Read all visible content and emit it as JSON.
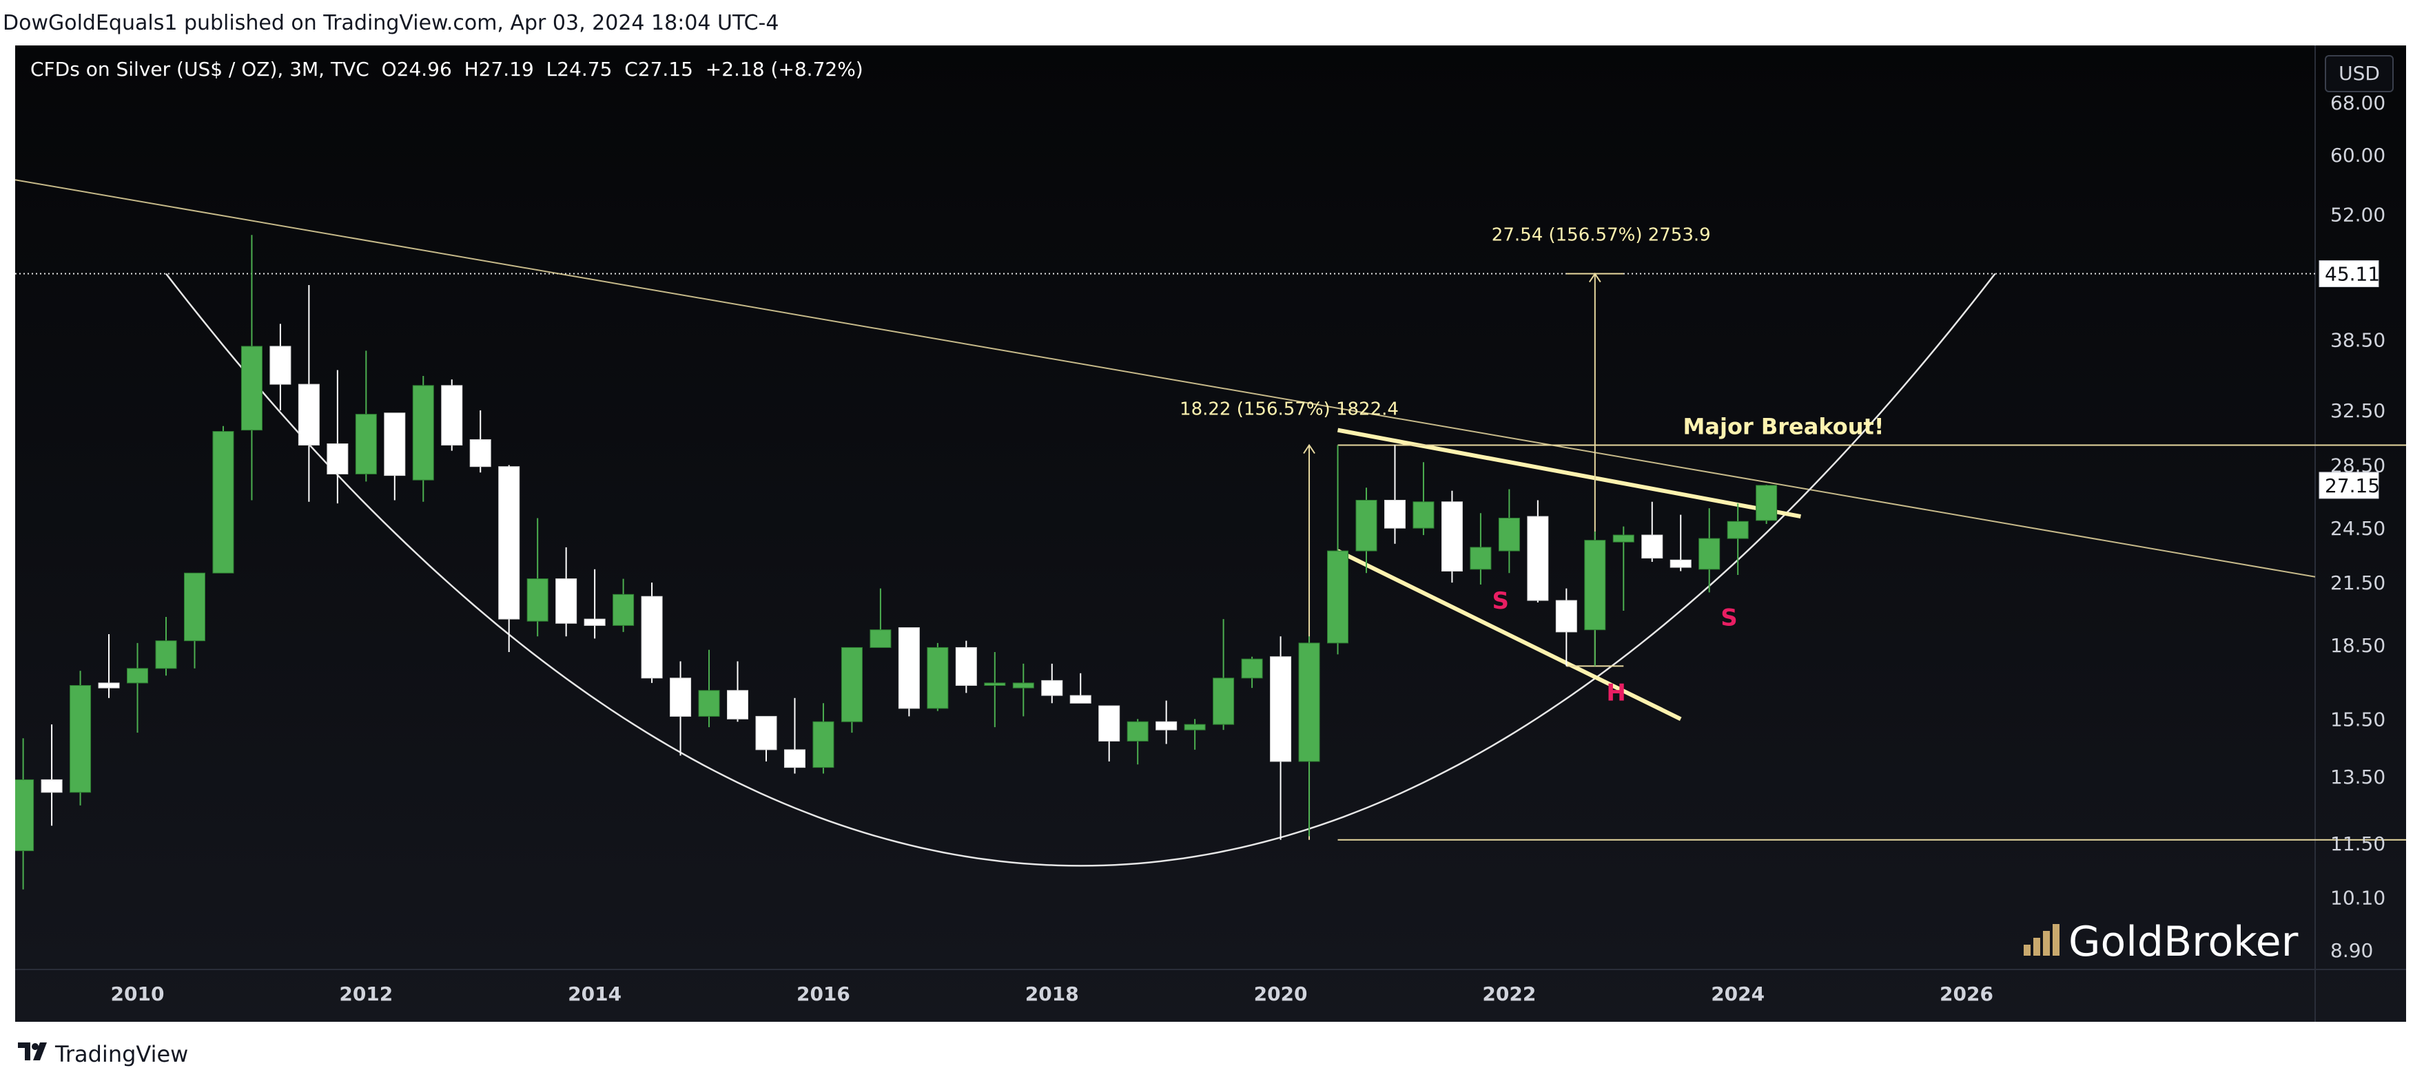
{
  "header": {
    "publisher": "DowGoldEquals1 published on TradingView.com, Apr 03, 2024 18:04 UTC-4"
  },
  "footer": {
    "brand": "TradingView"
  },
  "toolbar": {
    "currency": "USD"
  },
  "legend": {
    "symbol": "CFDs on Silver (US$ / OZ), 3M, TVC",
    "open": "O24.96",
    "high": "H27.19",
    "low": "L24.75",
    "close": "C27.15",
    "change": "+2.18 (+8.72%)"
  },
  "watermark": "GoldBroker",
  "colors": {
    "up": "#4caf50",
    "down": "#ffffff",
    "background": "#0b0d12",
    "annotation": "#fff3b0",
    "pattern_label": "#e91e63"
  },
  "chart_data": {
    "type": "candlestick",
    "title": "CFDs on Silver (US$ / OZ), 3M, TVC",
    "y_scale": "log",
    "ylim": [
      8.5,
      78
    ],
    "y_ticks": [
      "68.00",
      "60.00",
      "52.00",
      "45.11",
      "38.50",
      "32.50",
      "28.50",
      "27.15",
      "24.50",
      "21.50",
      "18.50",
      "15.50",
      "13.50",
      "11.50",
      "10.10",
      "8.90"
    ],
    "x_ticks": [
      "2010",
      "2012",
      "2014",
      "2016",
      "2018",
      "2020",
      "2022",
      "2024",
      "2026"
    ],
    "xlim": [
      2008.93,
      2029.05
    ],
    "candles": [
      {
        "t": 2009.0,
        "o": 11.3,
        "h": 14.8,
        "l": 10.3,
        "c": 13.4
      },
      {
        "t": 2009.25,
        "o": 13.4,
        "h": 15.3,
        "l": 12.0,
        "c": 13.0
      },
      {
        "t": 2009.5,
        "o": 13.0,
        "h": 17.4,
        "l": 12.6,
        "c": 16.8
      },
      {
        "t": 2009.75,
        "o": 16.9,
        "h": 19.0,
        "l": 16.3,
        "c": 16.7
      },
      {
        "t": 2010.0,
        "o": 16.9,
        "h": 18.6,
        "l": 15.0,
        "c": 17.5
      },
      {
        "t": 2010.25,
        "o": 17.5,
        "h": 19.8,
        "l": 17.2,
        "c": 18.7
      },
      {
        "t": 2010.5,
        "o": 18.7,
        "h": 22.0,
        "l": 17.5,
        "c": 22.0
      },
      {
        "t": 2010.75,
        "o": 22.0,
        "h": 31.3,
        "l": 22.0,
        "c": 30.9
      },
      {
        "t": 2011.0,
        "o": 31.0,
        "h": 49.5,
        "l": 26.2,
        "c": 37.9
      },
      {
        "t": 2011.25,
        "o": 37.9,
        "h": 40.0,
        "l": 32.5,
        "c": 34.6
      },
      {
        "t": 2011.5,
        "o": 34.6,
        "h": 43.9,
        "l": 26.1,
        "c": 29.9
      },
      {
        "t": 2011.75,
        "o": 30.0,
        "h": 35.8,
        "l": 26.0,
        "c": 27.9
      },
      {
        "t": 2012.0,
        "o": 27.9,
        "h": 37.5,
        "l": 27.4,
        "c": 32.2
      },
      {
        "t": 2012.25,
        "o": 32.3,
        "h": 32.3,
        "l": 26.2,
        "c": 27.8
      },
      {
        "t": 2012.5,
        "o": 27.5,
        "h": 35.3,
        "l": 26.1,
        "c": 34.5
      },
      {
        "t": 2012.75,
        "o": 34.5,
        "h": 35.0,
        "l": 29.5,
        "c": 29.9
      },
      {
        "t": 2013.0,
        "o": 30.3,
        "h": 32.5,
        "l": 28.0,
        "c": 28.4
      },
      {
        "t": 2013.25,
        "o": 28.4,
        "h": 28.5,
        "l": 18.2,
        "c": 19.7
      },
      {
        "t": 2013.5,
        "o": 19.6,
        "h": 25.1,
        "l": 18.9,
        "c": 21.7
      },
      {
        "t": 2013.75,
        "o": 21.7,
        "h": 23.4,
        "l": 18.9,
        "c": 19.5
      },
      {
        "t": 2014.0,
        "o": 19.7,
        "h": 22.2,
        "l": 18.8,
        "c": 19.4
      },
      {
        "t": 2014.25,
        "o": 19.4,
        "h": 21.7,
        "l": 19.1,
        "c": 20.9
      },
      {
        "t": 2014.5,
        "o": 20.8,
        "h": 21.5,
        "l": 16.9,
        "c": 17.1
      },
      {
        "t": 2014.75,
        "o": 17.1,
        "h": 17.8,
        "l": 14.2,
        "c": 15.6
      },
      {
        "t": 2015.0,
        "o": 15.6,
        "h": 18.3,
        "l": 15.2,
        "c": 16.6
      },
      {
        "t": 2015.25,
        "o": 16.6,
        "h": 17.8,
        "l": 15.4,
        "c": 15.5
      },
      {
        "t": 2015.5,
        "o": 15.6,
        "h": 15.6,
        "l": 14.0,
        "c": 14.4
      },
      {
        "t": 2015.75,
        "o": 14.4,
        "h": 16.3,
        "l": 13.6,
        "c": 13.8
      },
      {
        "t": 2016.0,
        "o": 13.8,
        "h": 16.1,
        "l": 13.6,
        "c": 15.4
      },
      {
        "t": 2016.25,
        "o": 15.4,
        "h": 18.4,
        "l": 15.0,
        "c": 18.4
      },
      {
        "t": 2016.5,
        "o": 18.4,
        "h": 21.2,
        "l": 18.4,
        "c": 19.2
      },
      {
        "t": 2016.75,
        "o": 19.3,
        "h": 19.3,
        "l": 15.6,
        "c": 15.9
      },
      {
        "t": 2017.0,
        "o": 15.9,
        "h": 18.6,
        "l": 15.8,
        "c": 18.4
      },
      {
        "t": 2017.25,
        "o": 18.4,
        "h": 18.7,
        "l": 16.5,
        "c": 16.8
      },
      {
        "t": 2017.5,
        "o": 16.8,
        "h": 18.2,
        "l": 15.2,
        "c": 16.9
      },
      {
        "t": 2017.75,
        "o": 16.7,
        "h": 17.7,
        "l": 15.6,
        "c": 16.9
      },
      {
        "t": 2018.0,
        "o": 17.0,
        "h": 17.7,
        "l": 16.1,
        "c": 16.4
      },
      {
        "t": 2018.25,
        "o": 16.4,
        "h": 17.3,
        "l": 16.1,
        "c": 16.1
      },
      {
        "t": 2018.5,
        "o": 16.0,
        "h": 16.0,
        "l": 14.0,
        "c": 14.7
      },
      {
        "t": 2018.75,
        "o": 14.7,
        "h": 15.5,
        "l": 13.9,
        "c": 15.4
      },
      {
        "t": 2019.0,
        "o": 15.4,
        "h": 16.2,
        "l": 14.6,
        "c": 15.1
      },
      {
        "t": 2019.25,
        "o": 15.1,
        "h": 15.5,
        "l": 14.4,
        "c": 15.3
      },
      {
        "t": 2019.5,
        "o": 15.3,
        "h": 19.7,
        "l": 15.1,
        "c": 17.1
      },
      {
        "t": 2019.75,
        "o": 17.1,
        "h": 18.0,
        "l": 16.7,
        "c": 17.9
      },
      {
        "t": 2020.0,
        "o": 18.0,
        "h": 18.9,
        "l": 11.6,
        "c": 14.0
      },
      {
        "t": 2020.25,
        "o": 14.0,
        "h": 18.9,
        "l": 11.7,
        "c": 18.6
      },
      {
        "t": 2020.5,
        "o": 18.6,
        "h": 29.9,
        "l": 18.1,
        "c": 23.2
      },
      {
        "t": 2020.75,
        "o": 23.2,
        "h": 27.0,
        "l": 22.0,
        "c": 26.2
      },
      {
        "t": 2021.0,
        "o": 26.2,
        "h": 29.9,
        "l": 23.6,
        "c": 24.5
      },
      {
        "t": 2021.25,
        "o": 24.5,
        "h": 28.7,
        "l": 24.1,
        "c": 26.1
      },
      {
        "t": 2021.5,
        "o": 26.1,
        "h": 26.8,
        "l": 21.5,
        "c": 22.1
      },
      {
        "t": 2021.75,
        "o": 22.2,
        "h": 25.4,
        "l": 21.4,
        "c": 23.4
      },
      {
        "t": 2022.0,
        "o": 23.2,
        "h": 26.9,
        "l": 22.0,
        "c": 25.1
      },
      {
        "t": 2022.25,
        "o": 25.2,
        "h": 26.2,
        "l": 20.5,
        "c": 20.6
      },
      {
        "t": 2022.5,
        "o": 20.6,
        "h": 21.2,
        "l": 17.6,
        "c": 19.1
      },
      {
        "t": 2022.75,
        "o": 19.2,
        "h": 24.3,
        "l": 17.6,
        "c": 23.8
      },
      {
        "t": 2023.0,
        "o": 23.7,
        "h": 24.6,
        "l": 20.1,
        "c": 24.1
      },
      {
        "t": 2023.25,
        "o": 24.1,
        "h": 26.1,
        "l": 22.6,
        "c": 22.8
      },
      {
        "t": 2023.5,
        "o": 22.7,
        "h": 25.3,
        "l": 22.1,
        "c": 22.3
      },
      {
        "t": 2023.75,
        "o": 22.2,
        "h": 25.7,
        "l": 21.0,
        "c": 23.9
      },
      {
        "t": 2024.0,
        "o": 23.9,
        "h": 26.0,
        "l": 21.9,
        "c": 24.9
      },
      {
        "t": 2024.25,
        "o": 24.96,
        "h": 27.19,
        "l": 24.75,
        "c": 27.15
      }
    ],
    "reference_line": {
      "value": 45.11,
      "label": "45.11"
    },
    "last_price": {
      "value": 27.15,
      "label": "27.15"
    },
    "measure_left": {
      "label": "18.22 (156.57%) 1822.4"
    },
    "measure_right": {
      "label": "27.54 (156.57%) 2753.9"
    },
    "annotations": [
      {
        "text": "Major Breakout!"
      },
      {
        "text": "S"
      },
      {
        "text": "H"
      },
      {
        "text": "S"
      }
    ]
  }
}
